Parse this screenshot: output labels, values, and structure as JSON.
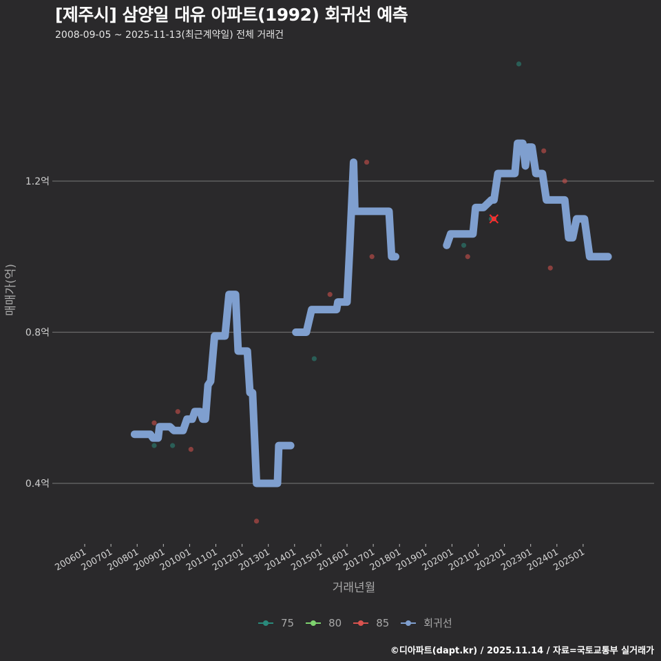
{
  "header": {
    "title": "[제주시] 삼양일 대유 아파트(1992) 회귀선 예측",
    "subtitle": "2008-09-05 ~ 2025-11-13(최근계약일) 전체 거래건"
  },
  "axes": {
    "y_title": "매매가(억)",
    "x_title": "거래년월",
    "y_ticks": [
      "1.2억",
      "0.8억",
      "0.4억"
    ],
    "x_ticks": [
      "200601",
      "200701",
      "200801",
      "200901",
      "201001",
      "201101",
      "201201",
      "201301",
      "201401",
      "201501",
      "201601",
      "201701",
      "201801",
      "201901",
      "202001",
      "202101",
      "202201",
      "202301",
      "202401",
      "202501"
    ]
  },
  "legend": {
    "items": [
      {
        "label": "75",
        "color": "#2a8a7c"
      },
      {
        "label": "80",
        "color": "#7ed36f"
      },
      {
        "label": "85",
        "color": "#d9534f"
      },
      {
        "label": "회귀선",
        "color": "#7f9fcf"
      }
    ]
  },
  "footer": {
    "credit": "©디아파트(dapt.kr) / 2025.11.14 / 자료=국토교통부 실거래가"
  },
  "chart_data": {
    "type": "line",
    "title": "[제주시] 삼양일 대유 아파트(1992) 회귀선 예측",
    "subtitle": "2008-09-05 ~ 2025-11-13(최근계약일) 전체 거래건",
    "xlabel": "거래년월",
    "ylabel": "매매가(억)",
    "ylim": [
      0.25,
      1.56
    ],
    "xlim": [
      2005.3,
      2027.0
    ],
    "grid": true,
    "legend_position": "bottom",
    "x_tick_labels": [
      "200601",
      "200701",
      "200801",
      "200901",
      "201001",
      "201101",
      "201201",
      "201301",
      "201401",
      "201501",
      "201601",
      "201701",
      "201801",
      "201901",
      "202001",
      "202101",
      "202201",
      "202301",
      "202401",
      "202501"
    ],
    "y_tick_labels": [
      "0.4억",
      "0.8억",
      "1.2억"
    ],
    "y_tick_values": [
      0.4,
      0.8,
      1.2
    ],
    "series": [
      {
        "name": "회귀선",
        "color": "#7f9fcf",
        "segments": [
          [
            [
              2007.9,
              0.53
            ],
            [
              2008.5,
              0.53
            ],
            [
              2008.6,
              0.52
            ],
            [
              2008.8,
              0.52
            ],
            [
              2008.85,
              0.55
            ],
            [
              2009.25,
              0.55
            ],
            [
              2009.4,
              0.54
            ],
            [
              2009.75,
              0.54
            ],
            [
              2009.9,
              0.57
            ],
            [
              2010.1,
              0.57
            ],
            [
              2010.2,
              0.59
            ],
            [
              2010.4,
              0.59
            ],
            [
              2010.5,
              0.57
            ],
            [
              2010.6,
              0.57
            ],
            [
              2010.7,
              0.66
            ],
            [
              2010.8,
              0.67
            ],
            [
              2010.95,
              0.79
            ],
            [
              2011.35,
              0.79
            ],
            [
              2011.5,
              0.9
            ],
            [
              2011.75,
              0.9
            ],
            [
              2011.85,
              0.75
            ],
            [
              2012.2,
              0.75
            ],
            [
              2012.3,
              0.64
            ],
            [
              2012.4,
              0.64
            ],
            [
              2012.55,
              0.4
            ],
            [
              2013.35,
              0.4
            ],
            [
              2013.4,
              0.5
            ],
            [
              2013.85,
              0.5
            ]
          ],
          [
            [
              2014.05,
              0.8
            ],
            [
              2014.45,
              0.8
            ],
            [
              2014.65,
              0.86
            ],
            [
              2015.6,
              0.86
            ],
            [
              2015.65,
              0.88
            ],
            [
              2016.0,
              0.88
            ],
            [
              2016.1,
              1.02
            ],
            [
              2016.25,
              1.25
            ],
            [
              2016.3,
              1.12
            ],
            [
              2017.6,
              1.12
            ],
            [
              2017.7,
              1.0
            ],
            [
              2017.85,
              1.0
            ]
          ],
          [
            [
              2019.8,
              1.03
            ],
            [
              2019.95,
              1.06
            ],
            [
              2020.8,
              1.06
            ],
            [
              2020.9,
              1.13
            ],
            [
              2021.2,
              1.13
            ],
            [
              2021.35,
              1.14
            ],
            [
              2021.5,
              1.15
            ],
            [
              2021.6,
              1.15
            ],
            [
              2021.75,
              1.22
            ],
            [
              2022.4,
              1.22
            ],
            [
              2022.5,
              1.3
            ],
            [
              2022.7,
              1.3
            ],
            [
              2022.8,
              1.24
            ],
            [
              2022.9,
              1.29
            ],
            [
              2023.05,
              1.29
            ],
            [
              2023.2,
              1.22
            ],
            [
              2023.45,
              1.22
            ],
            [
              2023.6,
              1.15
            ],
            [
              2024.3,
              1.15
            ],
            [
              2024.45,
              1.05
            ],
            [
              2024.6,
              1.05
            ],
            [
              2024.75,
              1.1
            ],
            [
              2025.05,
              1.1
            ],
            [
              2025.25,
              1.0
            ],
            [
              2025.95,
              1.0
            ]
          ]
        ]
      },
      {
        "name": "75",
        "color": "#2a8a7c",
        "points": [
          [
            2008.65,
            0.5
          ],
          [
            2009.35,
            0.5
          ],
          [
            2014.75,
            0.73
          ],
          [
            2020.45,
            1.03
          ],
          [
            2021.5,
            1.1
          ],
          [
            2022.55,
            1.51
          ]
        ]
      },
      {
        "name": "80",
        "color": "#7ed36f",
        "points": []
      },
      {
        "name": "85",
        "color": "#d9534f",
        "points": [
          [
            2008.65,
            0.56
          ],
          [
            2009.55,
            0.59
          ],
          [
            2010.05,
            0.49
          ],
          [
            2012.55,
            0.3
          ],
          [
            2013.35,
            0.5
          ],
          [
            2015.35,
            0.9
          ],
          [
            2016.75,
            1.25
          ],
          [
            2016.95,
            1.0
          ],
          [
            2020.6,
            1.0
          ],
          [
            2021.6,
            1.1
          ],
          [
            2023.5,
            1.28
          ],
          [
            2023.75,
            0.97
          ],
          [
            2024.3,
            1.2
          ]
        ]
      }
    ],
    "highlight_point": {
      "x": 2021.6,
      "y": 1.1,
      "marker": "x",
      "color": "#ff2a2a"
    }
  }
}
